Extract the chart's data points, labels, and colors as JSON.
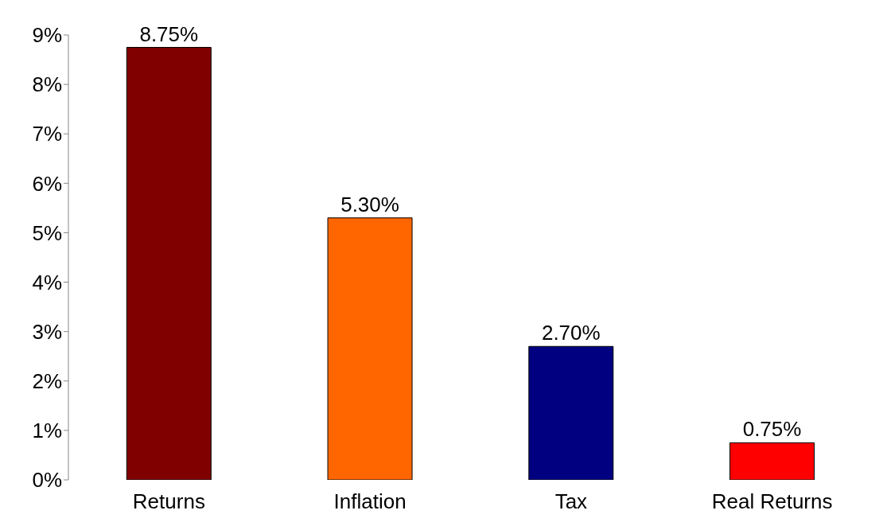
{
  "chart_data": {
    "type": "bar",
    "categories": [
      "Returns",
      "Inflation",
      "Tax",
      "Real Returns"
    ],
    "values": [
      8.75,
      5.3,
      2.7,
      0.75
    ],
    "colors": [
      "#800000",
      "#ff6600",
      "#000080",
      "#ff0000"
    ],
    "value_labels": [
      "8.75%",
      "5.30%",
      "2.70%",
      "0.75%"
    ],
    "ylim": [
      0,
      9
    ],
    "yticks": [
      {
        "value": 0,
        "label": "0%"
      },
      {
        "value": 1,
        "label": "1%"
      },
      {
        "value": 2,
        "label": "2%"
      },
      {
        "value": 3,
        "label": "3%"
      },
      {
        "value": 4,
        "label": "4%"
      },
      {
        "value": 5,
        "label": "5%"
      },
      {
        "value": 6,
        "label": "6%"
      },
      {
        "value": 7,
        "label": "7%"
      },
      {
        "value": 8,
        "label": "8%"
      },
      {
        "value": 9,
        "label": "9%"
      }
    ],
    "grid": false,
    "legend": false
  }
}
